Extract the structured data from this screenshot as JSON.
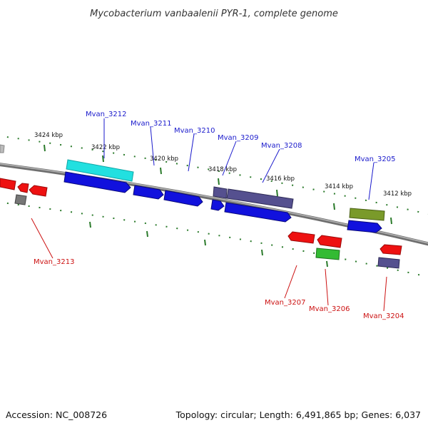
{
  "title": "Mycobacterium vanbaalenii PYR-1, complete genome",
  "accession": "Accession: NC_008726",
  "summary": "Topology: circular; Length: 6,491,865 bp; Genes: 6,037",
  "colors": {
    "backbone": "#888888",
    "tick": "#2a7a2a",
    "label_forward": "#1a1acc",
    "label_reverse": "#cc1111",
    "blue": "#1111dd",
    "red": "#ee1111",
    "cyan": "#22e0e0",
    "slate": "#55508f",
    "olive": "#7a9a2a",
    "green": "#33bb33",
    "gray": "#777777"
  },
  "kbp_ticks": [
    "3424 kbp",
    "3422 kbp",
    "3420 kbp",
    "3418 kbp",
    "3416 kbp",
    "3414 kbp",
    "3412 kbp"
  ],
  "gene_labels": {
    "forward": [
      "Mvan_3212",
      "Mvan_3211",
      "Mvan_3210",
      "Mvan_3209",
      "Mvan_3208",
      "Mvan_3205"
    ],
    "reverse": [
      "Mvan_3213",
      "Mvan_3207",
      "Mvan_3206",
      "Mvan_3204"
    ]
  },
  "features": [
    {
      "id": "fwd-cds-1",
      "color": "blue",
      "strand": "+"
    },
    {
      "id": "fwd-cds-2",
      "color": "blue",
      "strand": "+"
    },
    {
      "id": "fwd-cds-3",
      "color": "blue",
      "strand": "+"
    },
    {
      "id": "fwd-cds-4",
      "color": "blue",
      "strand": "+"
    },
    {
      "id": "fwd-cds-5",
      "color": "blue",
      "strand": "+"
    },
    {
      "id": "fwd-cds-6",
      "color": "blue",
      "strand": "+"
    },
    {
      "id": "fwd-cyan",
      "color": "cyan",
      "strand": "+"
    },
    {
      "id": "fwd-slate-1",
      "color": "slate",
      "strand": "+"
    },
    {
      "id": "fwd-slate-2",
      "color": "slate",
      "strand": "+"
    },
    {
      "id": "fwd-olive",
      "color": "olive",
      "strand": "+"
    },
    {
      "id": "rev-red-1",
      "color": "red",
      "strand": "-"
    },
    {
      "id": "rev-red-2",
      "color": "red",
      "strand": "-"
    },
    {
      "id": "rev-red-3",
      "color": "red",
      "strand": "-"
    },
    {
      "id": "rev-red-4",
      "color": "red",
      "strand": "-"
    },
    {
      "id": "rev-red-5",
      "color": "red",
      "strand": "-"
    },
    {
      "id": "rev-red-6",
      "color": "red",
      "strand": "-"
    },
    {
      "id": "rev-green",
      "color": "green",
      "strand": "-"
    },
    {
      "id": "rev-slate",
      "color": "slate",
      "strand": "-"
    },
    {
      "id": "rev-gray",
      "color": "gray",
      "strand": "-"
    }
  ]
}
